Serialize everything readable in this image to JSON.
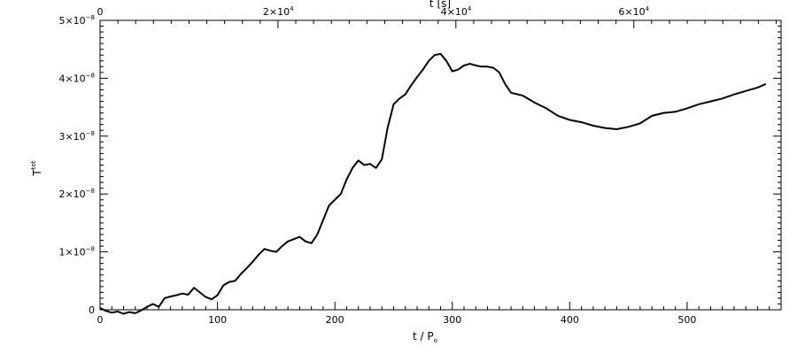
{
  "chart_data": {
    "type": "line",
    "xlabel": "t / P",
    "xlabel_sub": "o",
    "ylabel": "T",
    "ylabel_sup": "tot",
    "top_axis_label": "t [s]",
    "xlim": [
      0,
      580
    ],
    "ylim": [
      0,
      5e-08
    ],
    "grid": false,
    "x_ticks": [
      {
        "value": 0,
        "label": "0"
      },
      {
        "value": 100,
        "label": "100"
      },
      {
        "value": 200,
        "label": "200"
      },
      {
        "value": 300,
        "label": "300"
      },
      {
        "value": 400,
        "label": "400"
      },
      {
        "value": 500,
        "label": "500"
      }
    ],
    "top_ticks": [
      {
        "frac": 0.0,
        "label": "0",
        "exp": ""
      },
      {
        "frac": 0.2617,
        "label": "2×10",
        "exp": "4"
      },
      {
        "frac": 0.5227,
        "label": "4×10",
        "exp": "4"
      },
      {
        "frac": 0.7838,
        "label": "6×10",
        "exp": "4"
      }
    ],
    "y_ticks": [
      {
        "value": 0,
        "label": "0",
        "exp": ""
      },
      {
        "value": 1e-08,
        "label": "1×10",
        "exp": "−8"
      },
      {
        "value": 2e-08,
        "label": "2×10",
        "exp": "−8"
      },
      {
        "value": 3e-08,
        "label": "3×10",
        "exp": "−8"
      },
      {
        "value": 4e-08,
        "label": "4×10",
        "exp": "−8"
      },
      {
        "value": 5e-08,
        "label": "5×10",
        "exp": "−8"
      }
    ],
    "series": [
      {
        "x": [
          0,
          5,
          10,
          15,
          20,
          25,
          30,
          35,
          40,
          45,
          50,
          55,
          60,
          65,
          70,
          75,
          80,
          85,
          90,
          95,
          100,
          105,
          110,
          115,
          120,
          125,
          130,
          135,
          140,
          145,
          150,
          155,
          160,
          165,
          170,
          175,
          180,
          185,
          190,
          195,
          200,
          205,
          210,
          215,
          220,
          225,
          230,
          235,
          240,
          245,
          250,
          255,
          260,
          265,
          270,
          275,
          280,
          285,
          290,
          295,
          300,
          305,
          310,
          315,
          320,
          325,
          330,
          335,
          340,
          345,
          350,
          360,
          370,
          380,
          390,
          400,
          410,
          420,
          430,
          440,
          450,
          460,
          470,
          480,
          490,
          500,
          510,
          520,
          530,
          540,
          550,
          560,
          567
        ],
        "y": [
          3e-10,
          -2e-10,
          -5e-10,
          -3e-10,
          -7e-10,
          -4e-10,
          -6e-10,
          -1e-10,
          5e-10,
          1e-09,
          5e-10,
          2e-09,
          2.3e-09,
          2.5e-09,
          2.8e-09,
          2.6e-09,
          3.8e-09,
          3e-09,
          2.2e-09,
          1.8e-09,
          2.5e-09,
          4.2e-09,
          4.8e-09,
          5e-09,
          6.2e-09,
          7.2e-09,
          8.3e-09,
          9.5e-09,
          1.05e-08,
          1.02e-08,
          1e-08,
          1.1e-08,
          1.18e-08,
          1.22e-08,
          1.26e-08,
          1.18e-08,
          1.15e-08,
          1.3e-08,
          1.55e-08,
          1.8e-08,
          1.9e-08,
          2e-08,
          2.25e-08,
          2.45e-08,
          2.58e-08,
          2.5e-08,
          2.52e-08,
          2.45e-08,
          2.6e-08,
          3.15e-08,
          3.55e-08,
          3.65e-08,
          3.72e-08,
          3.88e-08,
          4.02e-08,
          4.15e-08,
          4.3e-08,
          4.4e-08,
          4.42e-08,
          4.3e-08,
          4.12e-08,
          4.15e-08,
          4.22e-08,
          4.25e-08,
          4.22e-08,
          4.2e-08,
          4.2e-08,
          4.18e-08,
          4.1e-08,
          3.9e-08,
          3.75e-08,
          3.7e-08,
          3.58e-08,
          3.48e-08,
          3.35e-08,
          3.28e-08,
          3.24e-08,
          3.18e-08,
          3.14e-08,
          3.12e-08,
          3.16e-08,
          3.22e-08,
          3.35e-08,
          3.4e-08,
          3.42e-08,
          3.48e-08,
          3.55e-08,
          3.6e-08,
          3.65e-08,
          3.72e-08,
          3.78e-08,
          3.84e-08,
          3.9e-08
        ]
      }
    ]
  }
}
